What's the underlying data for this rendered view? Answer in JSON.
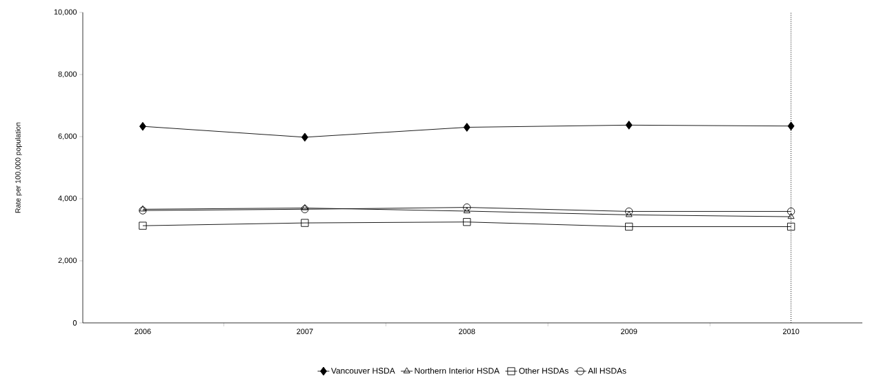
{
  "chart_data": {
    "type": "line",
    "ylabel": "Rate per 100,000 population",
    "categories": [
      "2006",
      "2007",
      "2008",
      "2009",
      "2010"
    ],
    "series": [
      {
        "name": "Vancouver HSDA",
        "color": "#000000",
        "marker": "diamond",
        "values": [
          6330,
          5980,
          6300,
          6370,
          6340
        ]
      },
      {
        "name": "Northern Interior HSDA",
        "color": "#000000",
        "marker": "triangle",
        "values": [
          3660,
          3700,
          3600,
          3480,
          3420
        ]
      },
      {
        "name": "Other HSDAs",
        "color": "#000000",
        "marker": "square",
        "values": [
          3130,
          3220,
          3250,
          3100,
          3100
        ]
      },
      {
        "name": "All HSDAs",
        "color": "#000000",
        "marker": "circle",
        "values": [
          3620,
          3660,
          3720,
          3590,
          3590
        ]
      }
    ],
    "ylim": [
      0,
      10000
    ],
    "yticks": [
      0,
      {
        "value": 2000,
        "label": "2,000"
      },
      {
        "value": 4000,
        "label": "4,000"
      },
      {
        "value": 6000,
        "label": "6,000"
      },
      {
        "value": 8000,
        "label": "8,000"
      },
      {
        "value": 10000,
        "label": "10,000"
      }
    ],
    "ref_lines": [
      {
        "axis": "x",
        "value": "2010",
        "color": "#000000",
        "line_style": "dotted"
      }
    ],
    "grid": false,
    "legend": "bottom",
    "line_style": "solid"
  }
}
